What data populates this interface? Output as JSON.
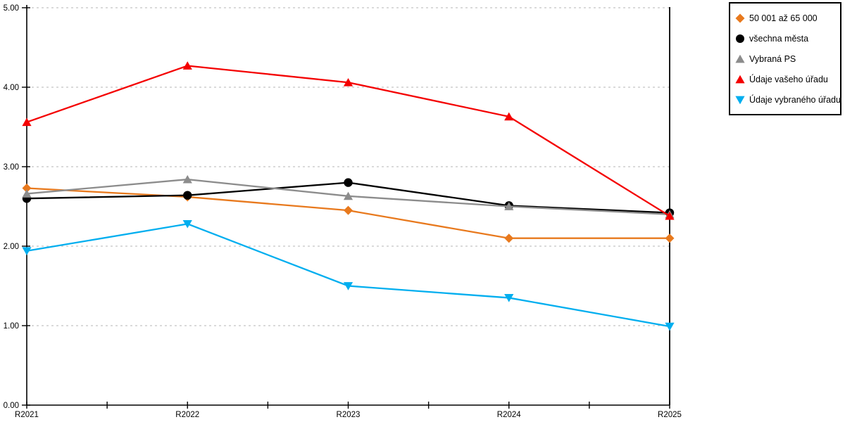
{
  "chart_data": {
    "type": "line",
    "title": "",
    "xlabel": "",
    "ylabel": "",
    "categories": [
      "R2021",
      "R2022",
      "R2023",
      "R2024",
      "R2025"
    ],
    "series": [
      {
        "name": "50 001 až 65 000",
        "color": "#E8791D",
        "marker": "diamond",
        "values": [
          2.73,
          2.62,
          2.45,
          2.1,
          2.1
        ]
      },
      {
        "name": "všechna města",
        "color": "#000000",
        "marker": "circle",
        "values": [
          2.6,
          2.64,
          2.8,
          2.51,
          2.42
        ]
      },
      {
        "name": "Vybraná PS",
        "color": "#8C8C8C",
        "marker": "triangle-up",
        "values": [
          2.66,
          2.84,
          2.63,
          2.5,
          2.4
        ]
      },
      {
        "name": "Údaje vašeho úřadu",
        "color": "#F40000",
        "marker": "triangle-up",
        "values": [
          3.56,
          4.27,
          4.06,
          3.63,
          2.38
        ]
      },
      {
        "name": "Údaje vybraného úřadu",
        "color": "#00AEEF",
        "marker": "triangle-down",
        "values": [
          1.94,
          2.28,
          1.5,
          1.35,
          0.99
        ]
      }
    ],
    "ylim": [
      0,
      5
    ],
    "ytick_step": 1,
    "ytick_labels": [
      "0.00",
      "1.00",
      "2.00",
      "3.00",
      "4.00",
      "5.00"
    ],
    "grid": "horizontal-dashed",
    "gridline_color": "#C3C3C3",
    "axis_color": "#000000",
    "legend_position": "top-right"
  }
}
